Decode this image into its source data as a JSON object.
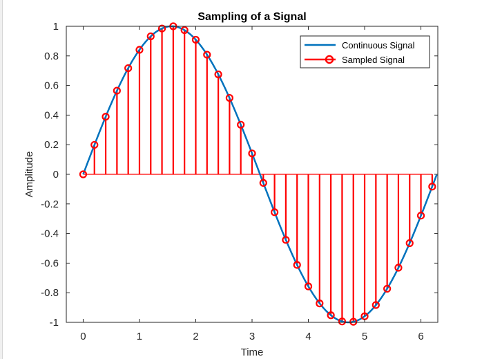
{
  "chart_data": {
    "type": "line",
    "title": "Sampling of a Signal",
    "xlabel": "Time",
    "ylabel": "Amplitude",
    "xlim": [
      -0.3,
      6.3
    ],
    "ylim": [
      -1,
      1
    ],
    "xticks": [
      "0",
      "1",
      "2",
      "3",
      "4",
      "5",
      "6"
    ],
    "yticks": [
      "-1",
      "-0.8",
      "-0.6",
      "-0.4",
      "-0.2",
      "0",
      "0.2",
      "0.4",
      "0.6",
      "0.8",
      "1"
    ],
    "grid": false,
    "legend_position": "top-right",
    "series": [
      {
        "name": "Continuous Signal",
        "style": "line",
        "color": "#0072BD",
        "function": "sin(t)",
        "x_range": [
          0,
          6.28
        ]
      },
      {
        "name": "Sampled Signal",
        "style": "stem",
        "color": "#FF0000",
        "x": [
          0,
          0.2,
          0.4,
          0.6,
          0.8,
          1.0,
          1.2,
          1.4,
          1.6,
          1.8,
          2.0,
          2.2,
          2.4,
          2.6,
          2.8,
          3.0,
          3.2,
          3.4,
          3.6,
          3.8,
          4.0,
          4.2,
          4.4,
          4.6,
          4.8,
          5.0,
          5.2,
          5.4,
          5.6,
          5.8,
          6.0,
          6.2
        ],
        "y": [
          0,
          0.199,
          0.389,
          0.565,
          0.717,
          0.841,
          0.932,
          0.985,
          1.0,
          0.974,
          0.909,
          0.808,
          0.675,
          0.516,
          0.335,
          0.141,
          -0.058,
          -0.256,
          -0.443,
          -0.612,
          -0.757,
          -0.872,
          -0.952,
          -0.994,
          -0.996,
          -0.959,
          -0.883,
          -0.773,
          -0.631,
          -0.465,
          -0.279,
          -0.083
        ]
      }
    ]
  },
  "colors": {
    "continuous": "#0072BD",
    "sampled": "#FF0000",
    "axes": "#262626"
  }
}
